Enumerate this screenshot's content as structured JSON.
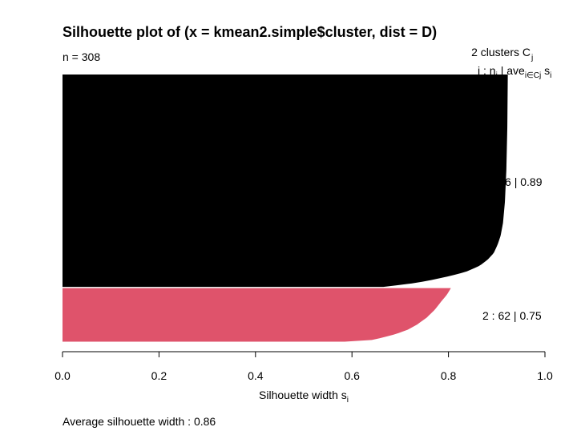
{
  "chart_data": {
    "type": "bar",
    "orientation": "horizontal",
    "title": "Silhouette plot of (x = kmean2.simple$cluster, dist = D)",
    "n_label": "n = 308",
    "header_line1": "2  clusters  C",
    "header_line1_sub": "j",
    "header_line2_prefix": "j :  n",
    "header_line2_mid": " | ave",
    "header_line2_sub": "i∈Cj",
    "header_line2_suffix": "  s",
    "header_line2_suffix_sub": "i",
    "xlabel": "Silhouette width s",
    "xlabel_sub": "i",
    "xlim": [
      0,
      1
    ],
    "xticks": [
      0.0,
      0.2,
      0.4,
      0.6,
      0.8,
      1.0
    ],
    "xtick_labels": [
      "0.0",
      "0.2",
      "0.4",
      "0.6",
      "0.8",
      "1.0"
    ],
    "average_label": "Average silhouette width :  0.86",
    "clusters": [
      {
        "id": 1,
        "n": 246,
        "ave": 0.89,
        "label": "1 :  246  |  0.89",
        "color": "#000000",
        "profile": [
          [
            0.0,
            0.923
          ],
          [
            0.25,
            0.922
          ],
          [
            0.45,
            0.92
          ],
          [
            0.6,
            0.917
          ],
          [
            0.7,
            0.913
          ],
          [
            0.76,
            0.908
          ],
          [
            0.8,
            0.902
          ],
          [
            0.84,
            0.894
          ],
          [
            0.87,
            0.882
          ],
          [
            0.9,
            0.865
          ],
          [
            0.93,
            0.835
          ],
          [
            0.95,
            0.8
          ],
          [
            0.97,
            0.76
          ],
          [
            0.985,
            0.72
          ],
          [
            1.0,
            0.665
          ]
        ]
      },
      {
        "id": 2,
        "n": 62,
        "ave": 0.75,
        "label": "2 :  62  |  0.75",
        "color": "#df536b",
        "profile": [
          [
            0.0,
            0.805
          ],
          [
            0.12,
            0.797
          ],
          [
            0.25,
            0.785
          ],
          [
            0.4,
            0.772
          ],
          [
            0.55,
            0.755
          ],
          [
            0.68,
            0.735
          ],
          [
            0.78,
            0.715
          ],
          [
            0.86,
            0.69
          ],
          [
            0.92,
            0.665
          ],
          [
            0.97,
            0.64
          ],
          [
            1.0,
            0.585
          ]
        ]
      }
    ],
    "legend": "none",
    "grid": false
  }
}
